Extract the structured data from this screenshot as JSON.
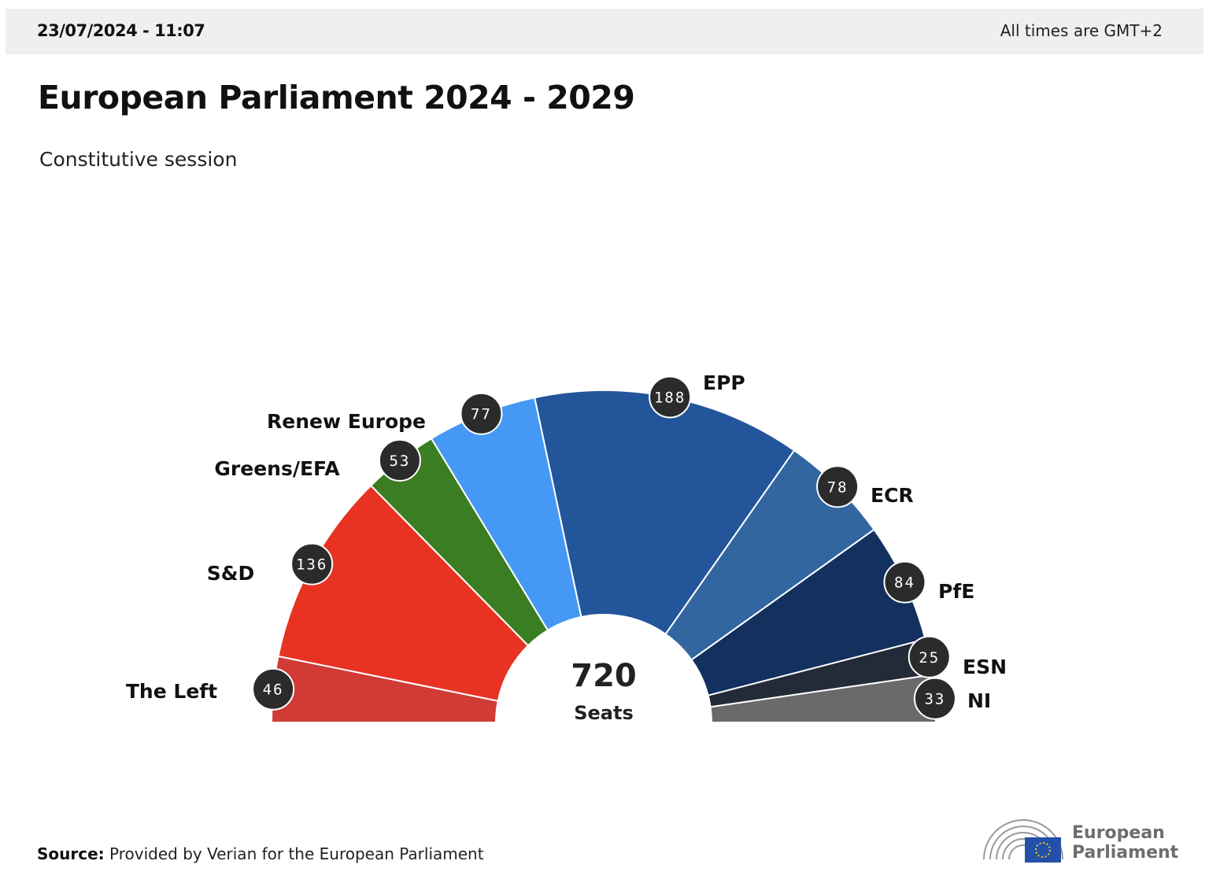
{
  "header": {
    "datetime": "23/07/2024 - 11:07",
    "timezone_note": "All times are GMT+2"
  },
  "title": "European Parliament 2024 - 2029",
  "subtitle": "Constitutive session",
  "chart_data": {
    "type": "pie",
    "subtype": "hemicycle",
    "total": 720,
    "center_value": "720",
    "center_label": "Seats",
    "categories": [
      "The Left",
      "S&D",
      "Greens/EFA",
      "Renew Europe",
      "EPP",
      "ECR",
      "PfE",
      "ESN",
      "NI"
    ],
    "values": [
      46,
      136,
      53,
      77,
      188,
      78,
      84,
      25,
      33
    ],
    "colors": [
      "#d03b35",
      "#e83323",
      "#3a7d22",
      "#4599f5",
      "#23559b",
      "#3266a1",
      "#13305f",
      "#232a38",
      "#6a6a6a"
    ]
  },
  "source": {
    "label": "Source:",
    "text": "Provided by Verian for the European Parliament"
  },
  "logo": {
    "line1": "European",
    "line2": "Parliament",
    "flag_color": "#2350a8"
  }
}
